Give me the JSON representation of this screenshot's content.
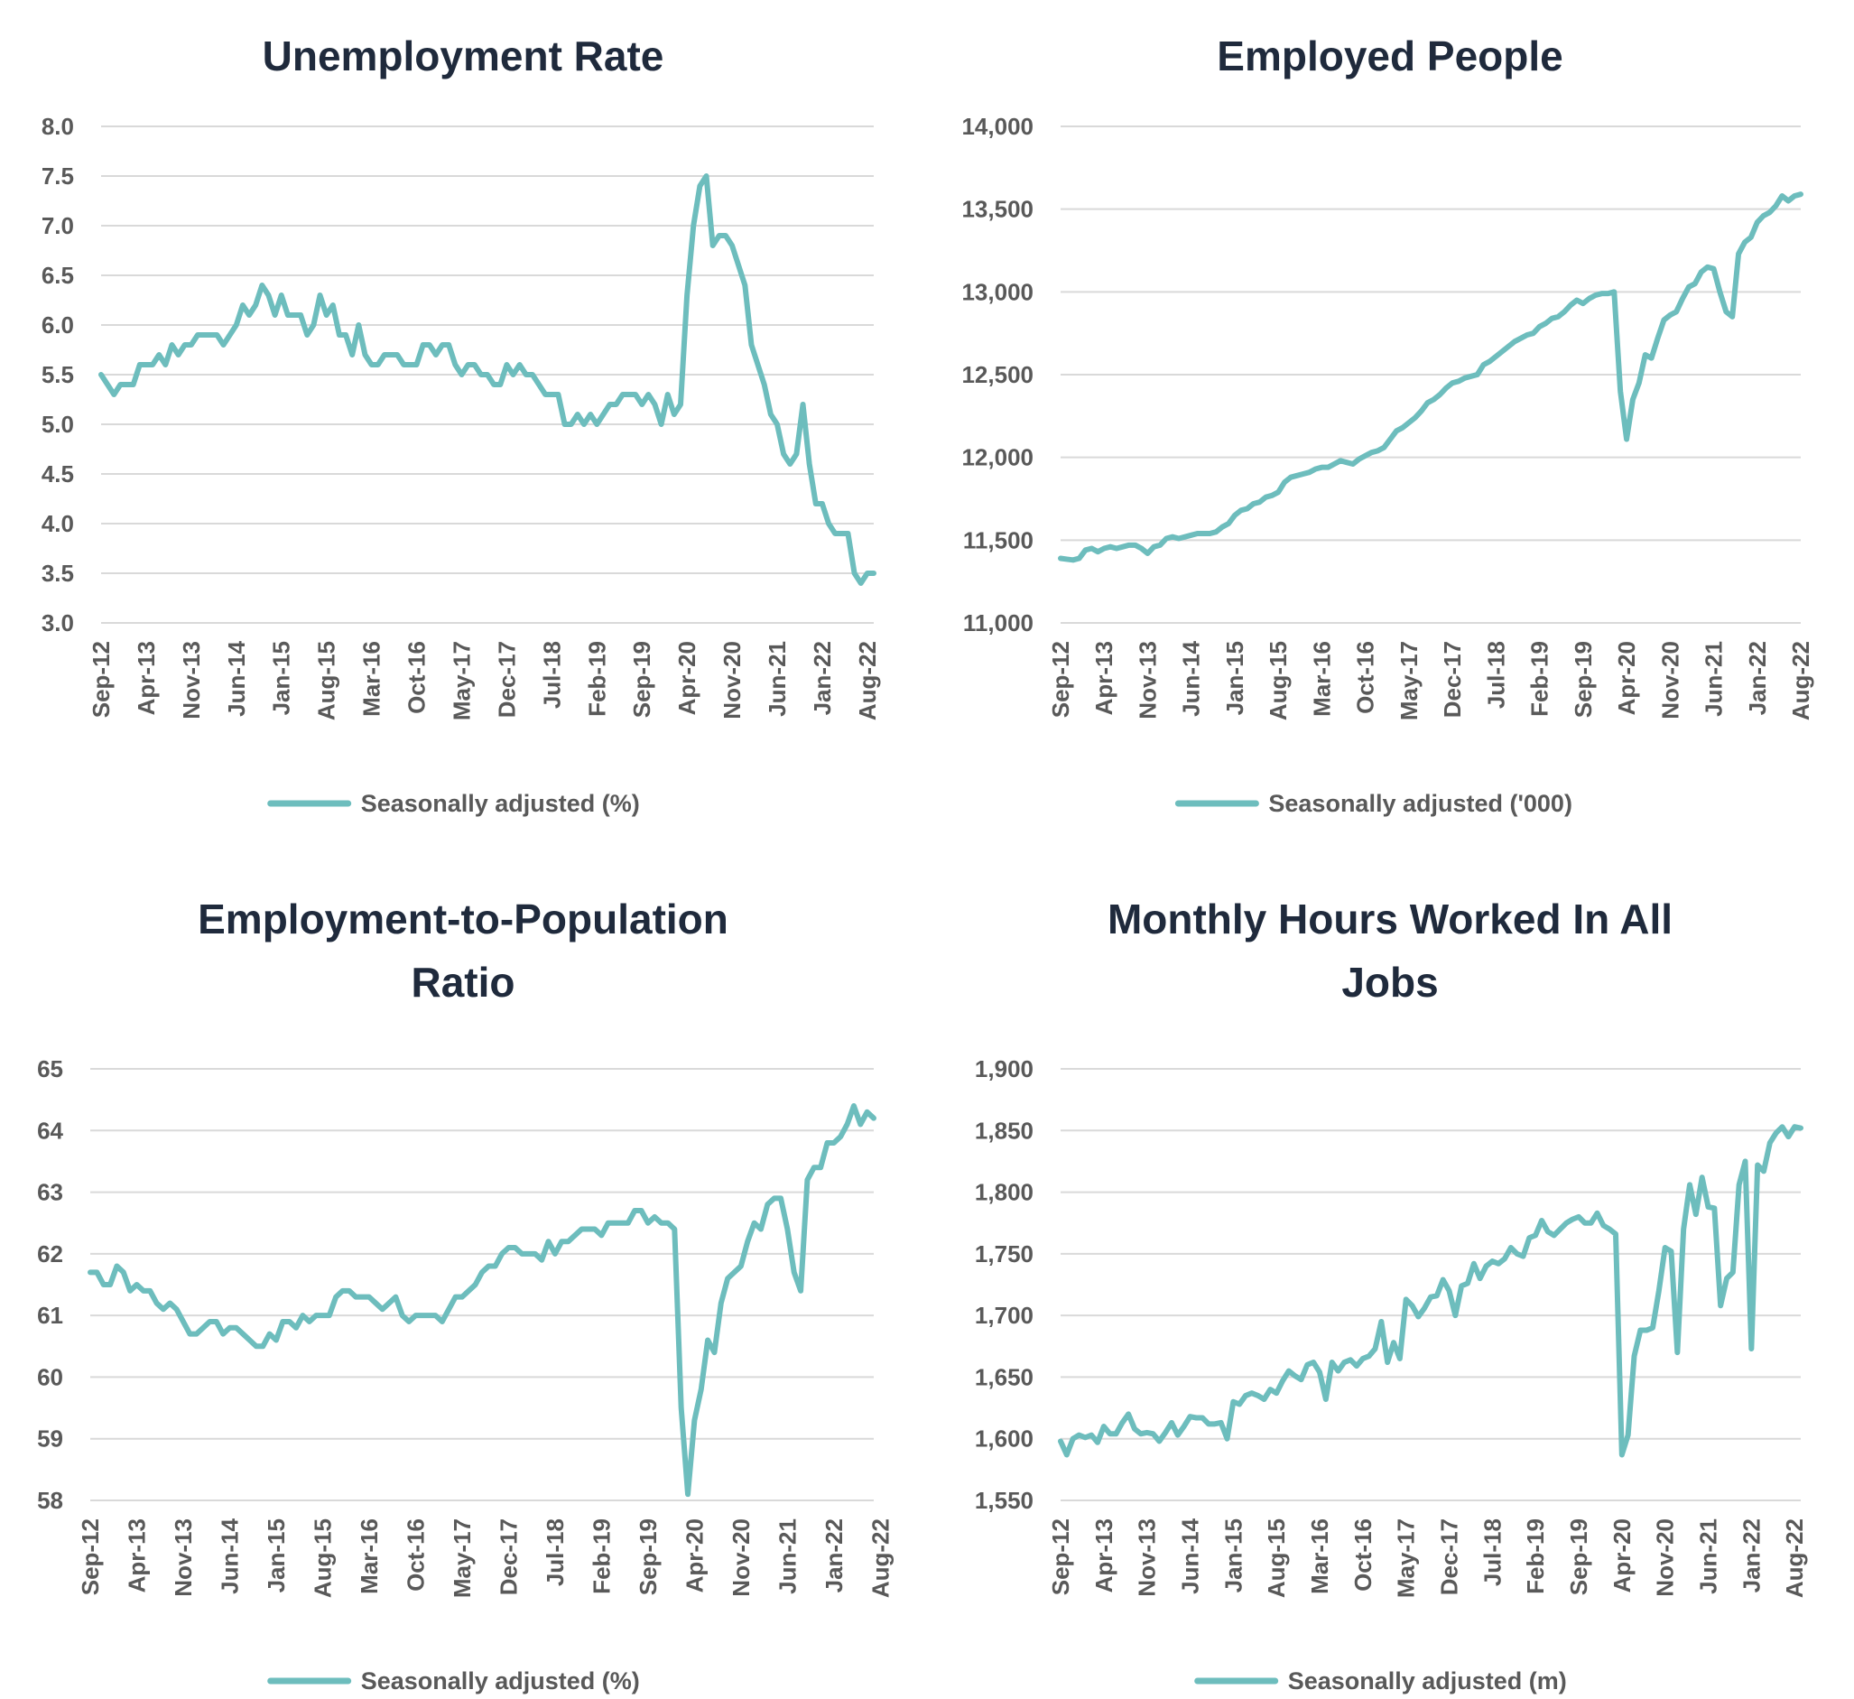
{
  "colors": {
    "series": "#6dbdbd",
    "title": "#1f2a3c",
    "tick": "#595959",
    "grid": "#d9d9d9"
  },
  "chart_data": [
    {
      "type": "line",
      "title": "Unemployment Rate",
      "x_tick_labels": [
        "Sep-12",
        "Apr-13",
        "Nov-13",
        "Jun-14",
        "Jan-15",
        "Aug-15",
        "Mar-16",
        "Oct-16",
        "May-17",
        "Dec-17",
        "Jul-18",
        "Feb-19",
        "Sep-19",
        "Apr-20",
        "Nov-20",
        "Jun-21",
        "Jan-22",
        "Aug-22"
      ],
      "y_tick_labels": [
        "3.0",
        "3.5",
        "4.0",
        "4.5",
        "5.0",
        "5.5",
        "6.0",
        "6.5",
        "7.0",
        "7.5",
        "8.0"
      ],
      "ylim": [
        3.0,
        8.0
      ],
      "grid": true,
      "legend_position": "bottom",
      "x_period": "monthly, Sep-12 to Aug-22",
      "series": [
        {
          "name": "Seasonally adjusted (%)",
          "values": [
            5.5,
            5.4,
            5.3,
            5.4,
            5.4,
            5.4,
            5.6,
            5.6,
            5.6,
            5.7,
            5.6,
            5.8,
            5.7,
            5.8,
            5.8,
            5.9,
            5.9,
            5.9,
            5.9,
            5.8,
            5.9,
            6.0,
            6.2,
            6.1,
            6.2,
            6.4,
            6.3,
            6.1,
            6.3,
            6.1,
            6.1,
            6.1,
            5.9,
            6.0,
            6.3,
            6.1,
            6.2,
            5.9,
            5.9,
            5.7,
            6.0,
            5.7,
            5.6,
            5.6,
            5.7,
            5.7,
            5.7,
            5.6,
            5.6,
            5.6,
            5.8,
            5.8,
            5.7,
            5.8,
            5.8,
            5.6,
            5.5,
            5.6,
            5.6,
            5.5,
            5.5,
            5.4,
            5.4,
            5.6,
            5.5,
            5.6,
            5.5,
            5.5,
            5.4,
            5.3,
            5.3,
            5.3,
            5.0,
            5.0,
            5.1,
            5.0,
            5.1,
            5.0,
            5.1,
            5.2,
            5.2,
            5.3,
            5.3,
            5.3,
            5.2,
            5.3,
            5.2,
            5.0,
            5.3,
            5.1,
            5.2,
            6.3,
            7.0,
            7.4,
            7.5,
            6.8,
            6.9,
            6.9,
            6.8,
            6.6,
            6.4,
            5.8,
            5.6,
            5.4,
            5.1,
            5.0,
            4.7,
            4.6,
            4.7,
            5.2,
            4.6,
            4.2,
            4.2,
            4.0,
            3.9,
            3.9,
            3.9,
            3.5,
            3.4,
            3.5,
            3.5
          ]
        }
      ]
    },
    {
      "type": "line",
      "title": "Employed People",
      "x_tick_labels": [
        "Sep-12",
        "Apr-13",
        "Nov-13",
        "Jun-14",
        "Jan-15",
        "Aug-15",
        "Mar-16",
        "Oct-16",
        "May-17",
        "Dec-17",
        "Jul-18",
        "Feb-19",
        "Sep-19",
        "Apr-20",
        "Nov-20",
        "Jun-21",
        "Jan-22",
        "Aug-22"
      ],
      "y_tick_labels": [
        "11,000",
        "11,500",
        "12,000",
        "12,500",
        "13,000",
        "13,500",
        "14,000"
      ],
      "ylim": [
        11000,
        14000
      ],
      "grid": true,
      "legend_position": "bottom",
      "x_period": "monthly, Sep-12 to Aug-22",
      "series": [
        {
          "name": "Seasonally adjusted ('000)",
          "values": [
            11390,
            11385,
            11380,
            11390,
            11440,
            11450,
            11430,
            11450,
            11460,
            11450,
            11460,
            11470,
            11470,
            11450,
            11420,
            11460,
            11470,
            11510,
            11520,
            11510,
            11520,
            11530,
            11540,
            11540,
            11540,
            11550,
            11580,
            11600,
            11650,
            11680,
            11690,
            11720,
            11730,
            11760,
            11770,
            11790,
            11850,
            11880,
            11890,
            11900,
            11910,
            11930,
            11940,
            11940,
            11960,
            11980,
            11970,
            11960,
            11990,
            12010,
            12030,
            12040,
            12060,
            12110,
            12160,
            12180,
            12210,
            12240,
            12280,
            12330,
            12350,
            12380,
            12420,
            12450,
            12460,
            12480,
            12490,
            12500,
            12560,
            12580,
            12610,
            12640,
            12670,
            12700,
            12720,
            12740,
            12750,
            12790,
            12810,
            12840,
            12850,
            12880,
            12920,
            12950,
            12930,
            12960,
            12980,
            12990,
            12990,
            13000,
            12400,
            12110,
            12350,
            12450,
            12620,
            12600,
            12720,
            12830,
            12860,
            12880,
            12960,
            13030,
            13050,
            13120,
            13150,
            13140,
            13000,
            12880,
            12850,
            13230,
            13300,
            13330,
            13420,
            13460,
            13480,
            13520,
            13580,
            13550,
            13580,
            13590
          ]
        }
      ]
    },
    {
      "type": "line",
      "title": "Employment-to-Population Ratio",
      "title_lines": [
        "Employment-to-Population",
        "Ratio"
      ],
      "x_tick_labels": [
        "Sep-12",
        "Apr-13",
        "Nov-13",
        "Jun-14",
        "Jan-15",
        "Aug-15",
        "Mar-16",
        "Oct-16",
        "May-17",
        "Dec-17",
        "Jul-18",
        "Feb-19",
        "Sep-19",
        "Apr-20",
        "Nov-20",
        "Jun-21",
        "Jan-22",
        "Aug-22"
      ],
      "y_tick_labels": [
        "58",
        "59",
        "60",
        "61",
        "62",
        "63",
        "64",
        "65"
      ],
      "ylim": [
        58,
        65
      ],
      "grid": true,
      "legend_position": "bottom",
      "x_period": "monthly, Sep-12 to Aug-22",
      "series": [
        {
          "name": "Seasonally adjusted (%)",
          "values": [
            61.7,
            61.7,
            61.5,
            61.5,
            61.8,
            61.7,
            61.4,
            61.5,
            61.4,
            61.4,
            61.2,
            61.1,
            61.2,
            61.1,
            60.9,
            60.7,
            60.7,
            60.8,
            60.9,
            60.9,
            60.7,
            60.8,
            60.8,
            60.7,
            60.6,
            60.5,
            60.5,
            60.7,
            60.6,
            60.9,
            60.9,
            60.8,
            61.0,
            60.9,
            61.0,
            61.0,
            61.0,
            61.3,
            61.4,
            61.4,
            61.3,
            61.3,
            61.3,
            61.2,
            61.1,
            61.2,
            61.3,
            61.0,
            60.9,
            61.0,
            61.0,
            61.0,
            61.0,
            60.9,
            61.1,
            61.3,
            61.3,
            61.4,
            61.5,
            61.7,
            61.8,
            61.8,
            62.0,
            62.1,
            62.1,
            62.0,
            62.0,
            62.0,
            61.9,
            62.2,
            62.0,
            62.2,
            62.2,
            62.3,
            62.4,
            62.4,
            62.4,
            62.3,
            62.5,
            62.5,
            62.5,
            62.5,
            62.7,
            62.7,
            62.5,
            62.6,
            62.5,
            62.5,
            62.4,
            59.5,
            58.1,
            59.3,
            59.8,
            60.6,
            60.4,
            61.2,
            61.6,
            61.7,
            61.8,
            62.2,
            62.5,
            62.4,
            62.8,
            62.9,
            62.9,
            62.4,
            61.7,
            61.4,
            63.2,
            63.4,
            63.4,
            63.8,
            63.8,
            63.9,
            64.1,
            64.4,
            64.1,
            64.3,
            64.2
          ]
        }
      ]
    },
    {
      "type": "line",
      "title": "Monthly Hours Worked In All Jobs",
      "title_lines": [
        "Monthly Hours Worked In All",
        "Jobs"
      ],
      "x_tick_labels": [
        "Sep-12",
        "Apr-13",
        "Nov-13",
        "Jun-14",
        "Jan-15",
        "Aug-15",
        "Mar-16",
        "Oct-16",
        "May-17",
        "Dec-17",
        "Jul-18",
        "Feb-19",
        "Sep-19",
        "Apr-20",
        "Nov-20",
        "Jun-21",
        "Jan-22",
        "Aug-22"
      ],
      "y_tick_labels": [
        "1,550",
        "1,600",
        "1,650",
        "1,700",
        "1,750",
        "1,800",
        "1,850",
        "1,900"
      ],
      "ylim": [
        1550,
        1900
      ],
      "grid": true,
      "legend_position": "bottom",
      "x_period": "monthly, Sep-12 to Aug-22",
      "series": [
        {
          "name": "Seasonally adjusted (m)",
          "values": [
            1598,
            1587,
            1600,
            1603,
            1601,
            1603,
            1597,
            1610,
            1604,
            1604,
            1613,
            1620,
            1608,
            1604,
            1605,
            1604,
            1598,
            1605,
            1613,
            1603,
            1610,
            1618,
            1617,
            1617,
            1612,
            1612,
            1613,
            1600,
            1630,
            1628,
            1635,
            1637,
            1635,
            1632,
            1640,
            1637,
            1647,
            1655,
            1651,
            1648,
            1660,
            1662,
            1654,
            1632,
            1662,
            1655,
            1662,
            1664,
            1659,
            1665,
            1667,
            1673,
            1695,
            1662,
            1678,
            1665,
            1713,
            1708,
            1699,
            1706,
            1715,
            1716,
            1729,
            1720,
            1700,
            1724,
            1726,
            1742,
            1730,
            1740,
            1744,
            1742,
            1746,
            1755,
            1750,
            1748,
            1763,
            1765,
            1777,
            1768,
            1765,
            1770,
            1775,
            1778,
            1780,
            1775,
            1775,
            1783,
            1773,
            1770,
            1766,
            1587,
            1603,
            1667,
            1688,
            1688,
            1690,
            1720,
            1755,
            1752,
            1670,
            1770,
            1806,
            1782,
            1812,
            1788,
            1787,
            1708,
            1730,
            1735,
            1806,
            1825,
            1673,
            1822,
            1817,
            1840,
            1848,
            1853,
            1845,
            1853,
            1852
          ]
        }
      ]
    }
  ]
}
